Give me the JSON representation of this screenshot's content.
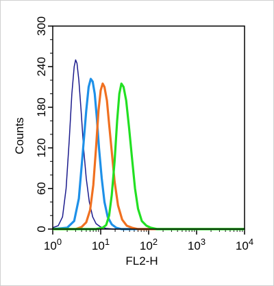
{
  "chart_data": {
    "type": "line",
    "title": "",
    "xlabel": "FL2-H",
    "ylabel": "Counts",
    "x_scale": "log",
    "xlim": [
      1,
      10000
    ],
    "ylim": [
      0,
      300
    ],
    "x_ticks": [
      {
        "base": "10",
        "exp": "0",
        "value": 1
      },
      {
        "base": "10",
        "exp": "1",
        "value": 10
      },
      {
        "base": "10",
        "exp": "2",
        "value": 100
      },
      {
        "base": "10",
        "exp": "3",
        "value": 1000
      },
      {
        "base": "10",
        "exp": "4",
        "value": 10000
      }
    ],
    "y_ticks": [
      "0",
      "60",
      "120",
      "180",
      "240",
      "300"
    ],
    "grid": false,
    "legend": "none",
    "series": [
      {
        "color": "#1a1a8c",
        "x": [
          1.0,
          1.3,
          1.6,
          1.9,
          2.2,
          2.5,
          2.8,
          3.0,
          3.2,
          3.5,
          3.9,
          4.4,
          5.0,
          5.8,
          6.8,
          8.0,
          10,
          13,
          18,
          25,
          40,
          100,
          10000
        ],
        "y": [
          2,
          5,
          18,
          60,
          130,
          200,
          240,
          250,
          245,
          220,
          175,
          120,
          75,
          40,
          18,
          8,
          3,
          1,
          0,
          0,
          0,
          0,
          0
        ]
      },
      {
        "color": "#1e90e8",
        "x": [
          1.0,
          2.0,
          2.8,
          3.5,
          4.2,
          5.0,
          5.6,
          6.2,
          6.8,
          7.5,
          8.3,
          9.2,
          10.5,
          12,
          14,
          17,
          21,
          27,
          40,
          100,
          10000
        ],
        "y": [
          0,
          2,
          12,
          45,
          110,
          175,
          210,
          222,
          218,
          200,
          165,
          120,
          75,
          40,
          18,
          7,
          2,
          0,
          0,
          0,
          0
        ]
      },
      {
        "color": "#f07020",
        "x": [
          1.0,
          3.0,
          4.0,
          5.0,
          6.0,
          7.0,
          8.0,
          9.0,
          10.0,
          11.0,
          12.0,
          13.5,
          15.0,
          17.0,
          19.5,
          23,
          28,
          35,
          45,
          60,
          100,
          10000
        ],
        "y": [
          0,
          0,
          3,
          10,
          28,
          65,
          120,
          175,
          205,
          215,
          210,
          190,
          155,
          115,
          70,
          35,
          14,
          5,
          2,
          0,
          0,
          0
        ]
      },
      {
        "color": "#22e022",
        "x": [
          1.0,
          8.0,
          11.0,
          13.0,
          15.0,
          17.0,
          19.5,
          22.0,
          24.5,
          27.0,
          30.0,
          34.0,
          39.0,
          45.0,
          52.0,
          60.0,
          72.0,
          90.0,
          110,
          150,
          1000,
          10000
        ],
        "y": [
          0,
          0,
          2,
          6,
          20,
          50,
          100,
          160,
          200,
          215,
          210,
          190,
          150,
          105,
          60,
          30,
          12,
          5,
          2,
          0,
          0,
          0
        ]
      }
    ]
  }
}
